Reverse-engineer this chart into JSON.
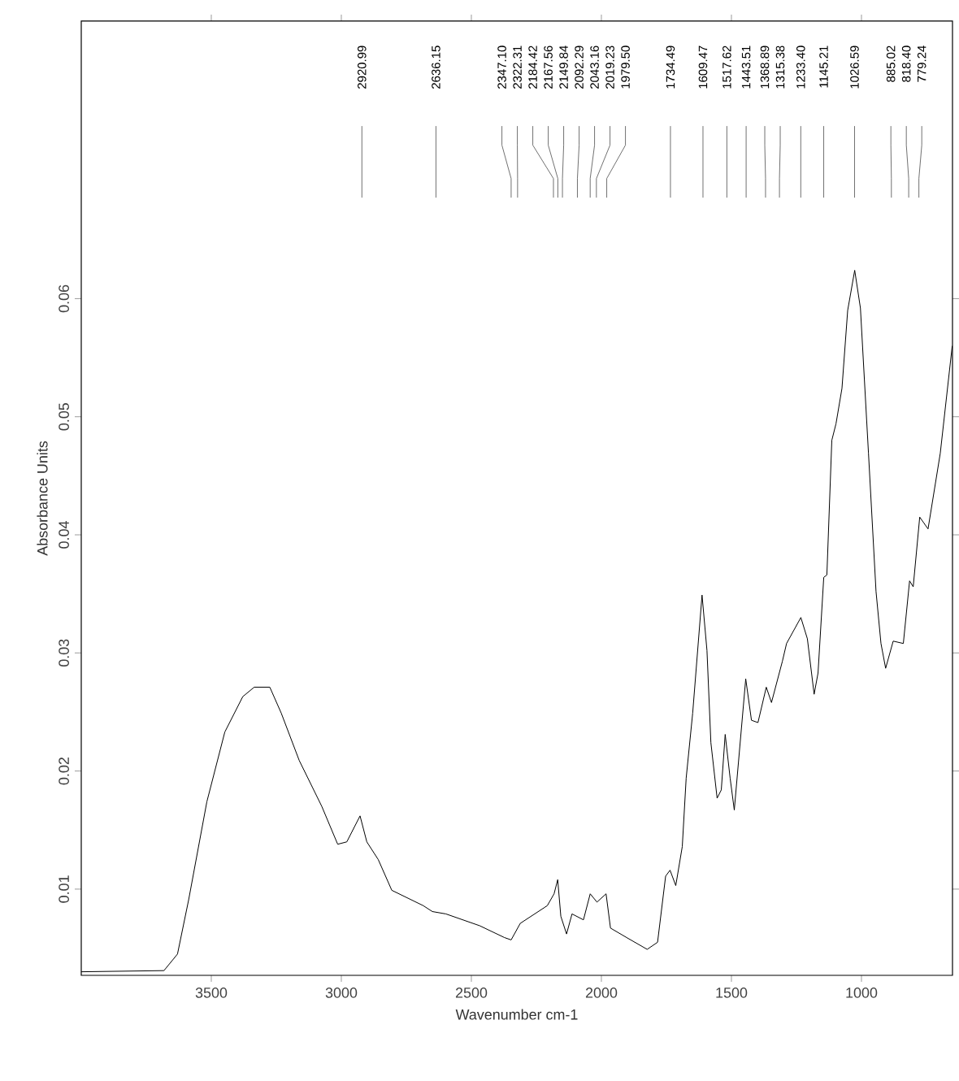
{
  "chart_data": {
    "type": "line",
    "xlabel": "Wavenumber cm-1",
    "ylabel": "Absorbance Units",
    "xlim": [
      4000,
      650
    ],
    "ylim": [
      0.0027,
      0.0835
    ],
    "xticks": [
      3500,
      3000,
      2500,
      2000,
      1500,
      1000
    ],
    "yticks": [
      0.01,
      0.02,
      0.03,
      0.04,
      0.05,
      0.06
    ],
    "grid": false,
    "marker": "none",
    "line_style": "solid",
    "series": [
      {
        "color": "#000000",
        "x": [
          4000,
          3682,
          3630,
          3587,
          3517,
          3448,
          3379,
          3335,
          3275,
          3231,
          3162,
          3075,
          3014,
          2979,
          2928,
          2902,
          2858,
          2806,
          2685,
          2650,
          2598,
          2468,
          2373,
          2347,
          2312,
          2208,
          2182,
          2168,
          2156,
          2134,
          2113,
          2069,
          2043,
          2017,
          1982,
          1965,
          1903,
          1824,
          1784,
          1753,
          1736,
          1714,
          1689,
          1674,
          1649,
          1613,
          1594,
          1579,
          1555,
          1539,
          1524,
          1505,
          1489,
          1445,
          1423,
          1398,
          1366,
          1346,
          1304,
          1288,
          1233,
          1208,
          1182,
          1167,
          1145,
          1133,
          1114,
          1098,
          1075,
          1053,
          1026,
          1004,
          973,
          944,
          925,
          907,
          878,
          839,
          815,
          801,
          776,
          744,
          697,
          651
        ],
        "values": [
          0.003,
          0.0031,
          0.0045,
          0.0091,
          0.0174,
          0.0233,
          0.0263,
          0.0271,
          0.0271,
          0.0249,
          0.0209,
          0.017,
          0.0138,
          0.014,
          0.0162,
          0.014,
          0.0125,
          0.0099,
          0.0086,
          0.0081,
          0.0079,
          0.0069,
          0.0059,
          0.0057,
          0.0071,
          0.0086,
          0.0096,
          0.0108,
          0.0077,
          0.0062,
          0.0079,
          0.0074,
          0.0096,
          0.0089,
          0.0096,
          0.0067,
          0.0059,
          0.0049,
          0.0055,
          0.0111,
          0.0116,
          0.0103,
          0.0136,
          0.0194,
          0.0249,
          0.0349,
          0.0302,
          0.0224,
          0.0177,
          0.0184,
          0.0231,
          0.0194,
          0.0167,
          0.0278,
          0.0243,
          0.0241,
          0.0271,
          0.0258,
          0.0293,
          0.0308,
          0.033,
          0.0312,
          0.0265,
          0.0283,
          0.0364,
          0.0366,
          0.048,
          0.0494,
          0.0524,
          0.059,
          0.0624,
          0.0592,
          0.0469,
          0.0352,
          0.0308,
          0.0287,
          0.031,
          0.0308,
          0.0361,
          0.0356,
          0.0415,
          0.0405,
          0.0469,
          0.056
        ]
      }
    ],
    "annotations": [
      "2920.99",
      "2636.15",
      "2347.10",
      "2322.31",
      "2184.42",
      "2167.56",
      "2149.84",
      "2092.29",
      "2043.16",
      "2019.23",
      "1979.50",
      "1734.49",
      "1609.47",
      "1517.62",
      "1443.51",
      "1368.89",
      "1315.38",
      "1233.40",
      "1145.21",
      "1026.59",
      "885.02",
      "818.40",
      "779.24"
    ]
  }
}
